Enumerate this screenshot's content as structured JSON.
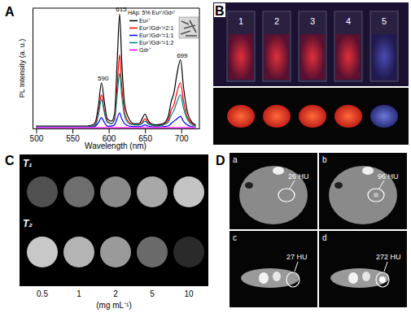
{
  "chart_data": {
    "type": "line",
    "x_label": "Wavelength (nm)",
    "y_label": "PL Intensity (a. u.)",
    "legend_title": "HAp: 5% Eu³⁺/Gd³⁺",
    "legend": "upper right",
    "tick_labels": "x",
    "xlim": [
      495,
      725
    ],
    "xticks": [
      500,
      550,
      600,
      650,
      700
    ],
    "ylim": [
      0,
      100
    ],
    "x": [
      500,
      520,
      540,
      560,
      570,
      578,
      582,
      586,
      590,
      594,
      598,
      604,
      608,
      612,
      615,
      618,
      622,
      628,
      635,
      642,
      646,
      650,
      654,
      658,
      665,
      675,
      682,
      686,
      690,
      694,
      699,
      703,
      708,
      715,
      720
    ],
    "series": [
      {
        "name": "Eu³⁺",
        "color": "#000000",
        "values": [
          2,
          2,
          2,
          2,
          2,
          3,
          6,
          20,
          38,
          22,
          8,
          6,
          12,
          60,
          95,
          55,
          20,
          8,
          4,
          4,
          8,
          12,
          7,
          4,
          3,
          4,
          10,
          22,
          30,
          45,
          57,
          35,
          15,
          5,
          3
        ]
      },
      {
        "name": "Eu³⁺/Gd³⁺=2:1",
        "color": "#ff0000",
        "values": [
          1.5,
          1.5,
          1.5,
          1.5,
          1.5,
          2,
          4,
          14,
          28,
          15,
          6,
          4,
          8,
          38,
          61,
          35,
          13,
          5,
          3,
          3,
          5,
          8,
          5,
          3,
          2,
          3,
          7,
          15,
          20,
          30,
          38,
          23,
          10,
          4,
          2
        ]
      },
      {
        "name": "Eu³⁺/Gd³⁺=1:1",
        "color": "#0000ff",
        "values": [
          1,
          1,
          1,
          1,
          1,
          1,
          2,
          5,
          9,
          5,
          2,
          2,
          3,
          9,
          13,
          8,
          4,
          2,
          1.5,
          1.5,
          2,
          3,
          2,
          1.5,
          1,
          1.5,
          2,
          4,
          6,
          8,
          10,
          6,
          3,
          1.5,
          1
        ]
      },
      {
        "name": "Eu³⁺/Gd³⁺=1:2",
        "color": "#008080",
        "values": [
          1.5,
          1.5,
          1.5,
          1.5,
          1.5,
          2,
          3,
          12,
          24,
          13,
          5,
          4,
          7,
          30,
          46,
          27,
          10,
          4,
          3,
          3,
          4,
          6,
          4,
          3,
          2,
          3,
          5,
          11,
          15,
          22,
          28,
          17,
          8,
          3,
          2
        ]
      },
      {
        "name": "Gd³⁺",
        "color": "#ff00ff",
        "values": [
          0.8,
          0.8,
          0.8,
          0.8,
          0.8,
          0.8,
          0.8,
          0.8,
          0.8,
          0.8,
          0.8,
          0.8,
          0.8,
          0.8,
          0.8,
          0.8,
          0.8,
          0.8,
          0.8,
          0.8,
          0.8,
          0.8,
          0.8,
          0.8,
          0.8,
          0.8,
          0.8,
          0.8,
          0.8,
          0.8,
          0.8,
          0.8,
          0.8,
          0.8,
          0.8
        ]
      }
    ],
    "annotations": [
      {
        "text": "590",
        "x": 590,
        "y": 38
      },
      {
        "text": "615",
        "x": 615,
        "y": 95
      },
      {
        "text": "699",
        "x": 699,
        "y": 57
      }
    ]
  },
  "panels": [
    "A",
    "B",
    "C",
    "D"
  ],
  "photo": {
    "labels": [
      "1",
      "2",
      "3",
      "4",
      "5"
    ]
  },
  "mri": {
    "rows": [
      "T₁",
      "T₂"
    ],
    "concentrations": [
      "0.5",
      "1",
      "2",
      "5",
      "10"
    ],
    "unit": "(mg mL⁻¹)"
  },
  "ct": {
    "images": [
      {
        "label": "a",
        "value": "26 HU"
      },
      {
        "label": "b",
        "value": "96 HU"
      },
      {
        "label": "c",
        "value": "27 HU"
      },
      {
        "label": "d",
        "value": "272 HU"
      }
    ]
  }
}
